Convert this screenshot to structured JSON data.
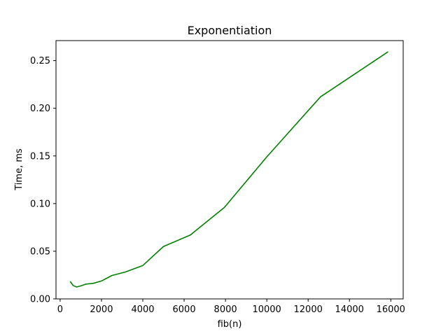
{
  "chart_data": {
    "type": "line",
    "title": "Exponentiation",
    "xlabel": "fib(n)",
    "ylabel": "Time, ms",
    "xlim": [
      -200,
      16600
    ],
    "ylim": [
      0,
      0.271
    ],
    "xticks": [
      0,
      2000,
      4000,
      6000,
      8000,
      10000,
      12000,
      14000,
      16000
    ],
    "xtick_labels": [
      "0",
      "2000",
      "4000",
      "6000",
      "8000",
      "10000",
      "12000",
      "14000",
      "16000"
    ],
    "yticks": [
      0.0,
      0.05,
      0.1,
      0.15,
      0.2,
      0.25
    ],
    "ytick_labels": [
      "0.00",
      "0.05",
      "0.10",
      "0.15",
      "0.20",
      "0.25"
    ],
    "grid": false,
    "series": [
      {
        "color": "#008000",
        "x": [
          500,
          630,
          800,
          1000,
          1250,
          1600,
          2000,
          2500,
          3150,
          4000,
          5000,
          6300,
          7950,
          10000,
          12600,
          15850
        ],
        "y": [
          0.018,
          0.014,
          0.0125,
          0.0137,
          0.0155,
          0.0163,
          0.0188,
          0.0245,
          0.0282,
          0.035,
          0.055,
          0.067,
          0.096,
          0.149,
          0.212,
          0.259
        ]
      }
    ]
  }
}
